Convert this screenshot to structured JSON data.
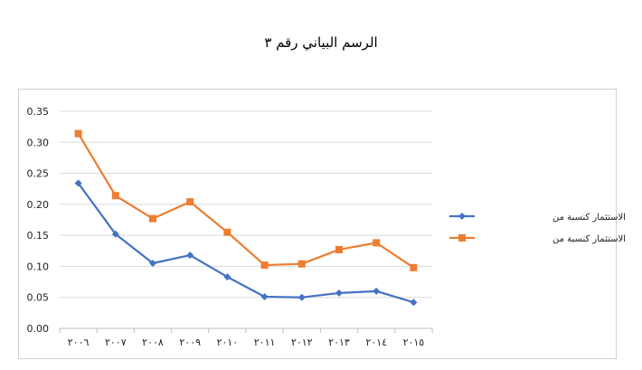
{
  "title": "الرسم البياني رقم ٣",
  "chart_data": {
    "type": "line",
    "title": "الرسم البياني رقم ٣",
    "categories": [
      "٢٠٠٦",
      "٢٠٠٧",
      "٢٠٠٨",
      "٢٠٠٩",
      "٢٠١٠",
      "٢٠١١",
      "٢٠١٢",
      "٢٠١٣",
      "٢٠١٤",
      "٢٠١٥"
    ],
    "series": [
      {
        "name": "الاستثمار كنسبة من",
        "color": "#4472C4",
        "marker": "diamond",
        "values": [
          0.234,
          0.152,
          0.105,
          0.118,
          0.083,
          0.051,
          0.05,
          0.057,
          0.06,
          0.042
        ]
      },
      {
        "name": "الاستثمار كنسبة من",
        "color": "#ED7D31",
        "marker": "square",
        "values": [
          0.314,
          0.214,
          0.177,
          0.204,
          0.155,
          0.102,
          0.104,
          0.127,
          0.138,
          0.098
        ]
      }
    ],
    "yticks": [
      "0.00",
      "0.05",
      "0.10",
      "0.15",
      "0.20",
      "0.25",
      "0.30",
      "0.35"
    ],
    "ylim": [
      0,
      0.35
    ],
    "grid": true,
    "legend_position": "right"
  }
}
